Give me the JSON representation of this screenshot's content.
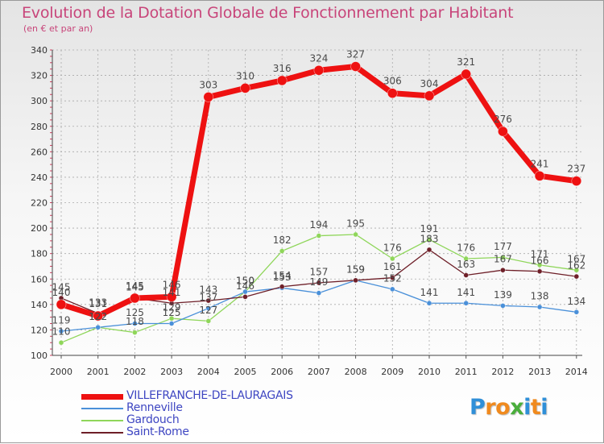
{
  "header": {
    "title": "Evolution de la Dotation Globale de Fonctionnement par Habitant",
    "subtitle": "(en € et par an)"
  },
  "colors": {
    "villefranche": "#ee1111",
    "renneville": "#4a90d9",
    "gardouch": "#8fd65a",
    "saint_rome": "#6e1f28",
    "title": "#c8457a",
    "legend_text": "#3e46c2",
    "grid": "#aaaaaa"
  },
  "chart_data": {
    "type": "line",
    "title": "Evolution de la Dotation Globale de Fonctionnement par Habitant",
    "subtitle": "(en € et par an)",
    "xlabel": "",
    "ylabel": "",
    "ylim": [
      100,
      340
    ],
    "yticks": [
      100,
      120,
      140,
      160,
      180,
      200,
      220,
      240,
      260,
      280,
      300,
      320,
      340
    ],
    "grid": true,
    "legend_position": "bottom-left",
    "x": [
      2000,
      2001,
      2002,
      2003,
      2004,
      2005,
      2006,
      2007,
      2008,
      2009,
      2010,
      2011,
      2012,
      2013,
      2014
    ],
    "series": [
      {
        "name": "Gardouch",
        "color_key": "gardouch",
        "values": [
          110,
          122,
          118,
          129,
          127,
          150,
          182,
          194,
          195,
          176,
          191,
          176,
          177,
          171,
          167
        ]
      },
      {
        "name": "Renneville",
        "color_key": "renneville",
        "values": [
          119,
          122,
          125,
          125,
          137,
          150,
          153,
          149,
          159,
          152,
          141,
          141,
          139,
          138,
          134
        ]
      },
      {
        "name": "Saint-Rome",
        "color_key": "saint_rome",
        "values": [
          145,
          133,
          145,
          141,
          143,
          146,
          154,
          157,
          159,
          161,
          183,
          163,
          167,
          166,
          162
        ]
      },
      {
        "name": "VILLEFRANCHE-DE-LAURAGAIS",
        "color_key": "villefranche",
        "values": [
          140,
          131,
          145,
          146,
          303,
          310,
          316,
          324,
          327,
          306,
          304,
          321,
          276,
          241,
          237
        ]
      }
    ]
  },
  "legend": {
    "items": [
      {
        "label": "VILLEFRANCHE-DE-LAURAGAIS",
        "color_key": "villefranche",
        "thick": 7
      },
      {
        "label": "Renneville",
        "color_key": "renneville",
        "thick": 2
      },
      {
        "label": "Gardouch",
        "color_key": "gardouch",
        "thick": 2
      },
      {
        "label": "Saint-Rome",
        "color_key": "saint_rome",
        "thick": 2
      }
    ]
  },
  "logo": {
    "letters": [
      {
        "char": "P",
        "color": "#2f8fd8"
      },
      {
        "char": "r",
        "color": "#f08a1e"
      },
      {
        "char": "o",
        "color": "#f08a1e"
      },
      {
        "char": "x",
        "color": "#4aae3c"
      },
      {
        "char": "i",
        "color": "#2f8fd8"
      },
      {
        "char": "t",
        "color": "#f08a1e"
      },
      {
        "char": "i",
        "color": "#2f8fd8"
      }
    ]
  }
}
